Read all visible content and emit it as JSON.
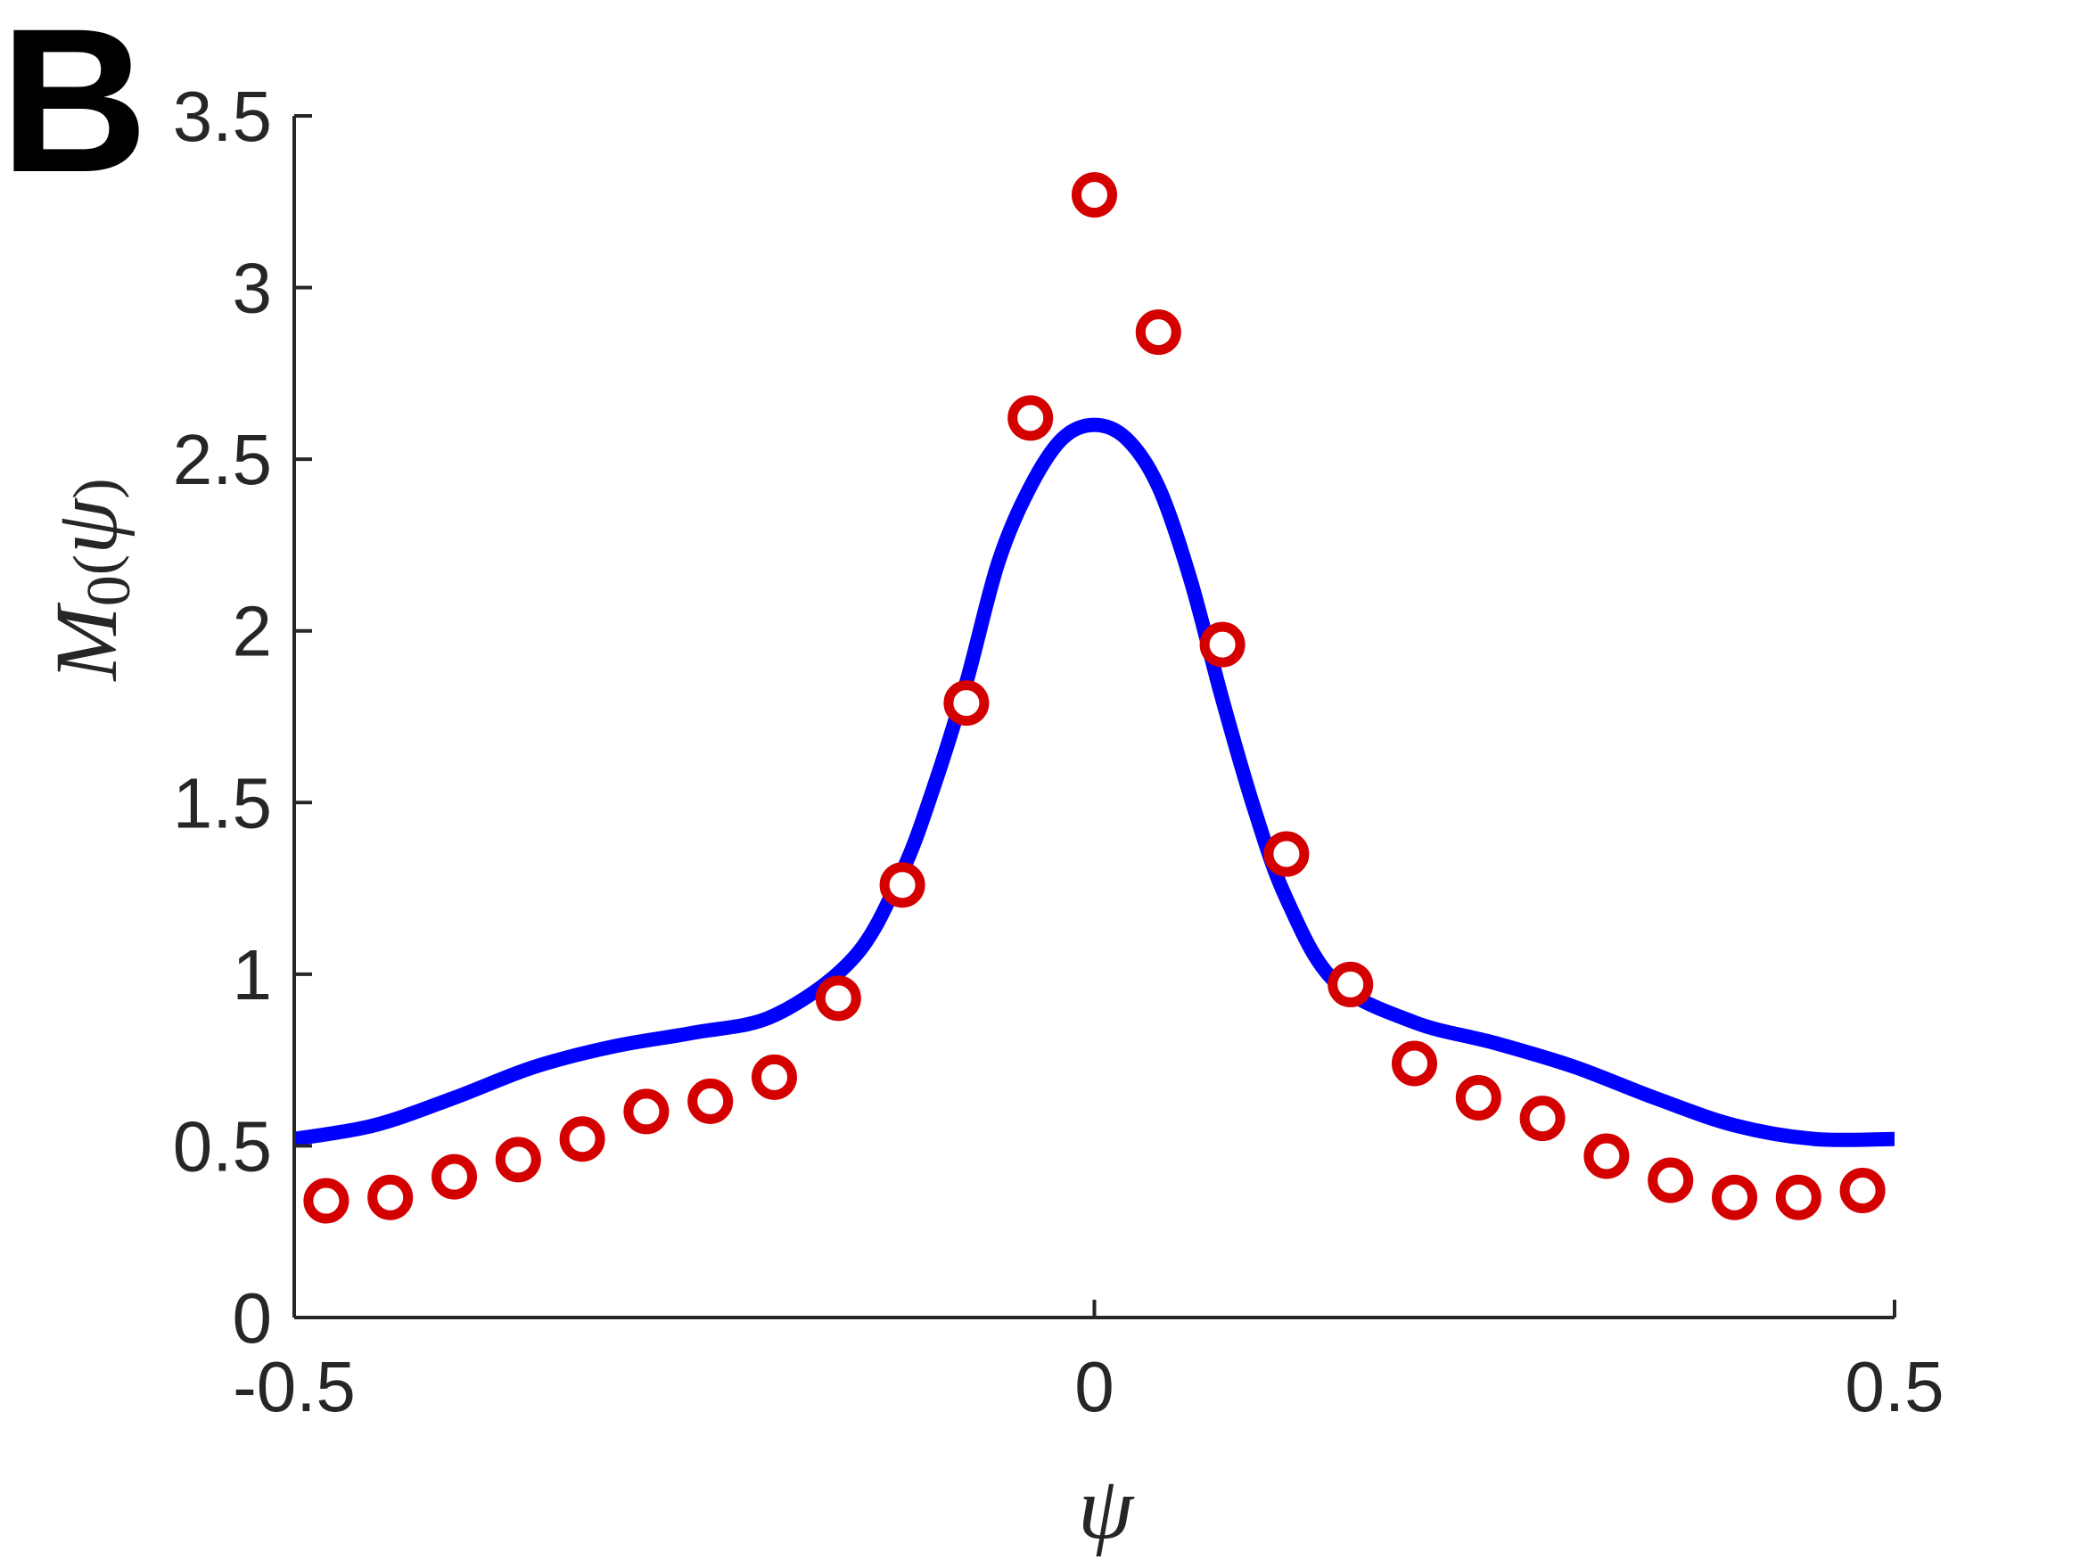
{
  "panel_label": "B",
  "chart_data": {
    "type": "line",
    "xlabel": "ψ",
    "ylabel": "M0(ψ)",
    "ylabel_parts": {
      "base": "M",
      "sub": "0",
      "open": "(",
      "arg": "ψ",
      "close": ")"
    },
    "xlim": [
      -0.5,
      0.5
    ],
    "ylim": [
      0,
      3.5
    ],
    "x_ticks": [
      -0.5,
      0,
      0.5
    ],
    "x_tick_labels": [
      "-0.5",
      "0",
      "0.5"
    ],
    "y_ticks": [
      0,
      0.5,
      1,
      1.5,
      2,
      2.5,
      3,
      3.5
    ],
    "y_tick_labels": [
      "0",
      "0.5",
      "1",
      "1.5",
      "2",
      "2.5",
      "3",
      "3.5"
    ],
    "grid": false,
    "series": [
      {
        "kind": "line",
        "color": "#0000ff",
        "x": [
          -0.5,
          -0.45,
          -0.4,
          -0.35,
          -0.3,
          -0.25,
          -0.2,
          -0.15,
          -0.12,
          -0.1,
          -0.08,
          -0.06,
          -0.04,
          -0.02,
          0,
          0.02,
          0.04,
          0.06,
          0.08,
          0.1,
          0.12,
          0.15,
          0.2,
          0.25,
          0.3,
          0.35,
          0.4,
          0.45,
          0.5
        ],
        "y": [
          0.52,
          0.56,
          0.64,
          0.73,
          0.79,
          0.83,
          0.88,
          1.05,
          1.3,
          1.55,
          1.85,
          2.2,
          2.42,
          2.56,
          2.6,
          2.56,
          2.42,
          2.15,
          1.8,
          1.48,
          1.22,
          0.98,
          0.86,
          0.8,
          0.73,
          0.64,
          0.56,
          0.52,
          0.52
        ]
      },
      {
        "kind": "scatter",
        "marker": "o",
        "color": "#d40000",
        "x": [
          -0.48,
          -0.44,
          -0.4,
          -0.36,
          -0.32,
          -0.28,
          -0.24,
          -0.2,
          -0.16,
          -0.12,
          -0.08,
          -0.04,
          0,
          0.04,
          0.08,
          0.12,
          0.16,
          0.2,
          0.24,
          0.28,
          0.32,
          0.36,
          0.4,
          0.44,
          0.48
        ],
        "y": [
          0.34,
          0.35,
          0.41,
          0.46,
          0.52,
          0.6,
          0.63,
          0.7,
          0.93,
          1.26,
          1.79,
          2.62,
          3.27,
          2.87,
          1.96,
          1.35,
          0.97,
          0.74,
          0.64,
          0.58,
          0.47,
          0.4,
          0.35,
          0.35,
          0.37
        ]
      }
    ]
  }
}
